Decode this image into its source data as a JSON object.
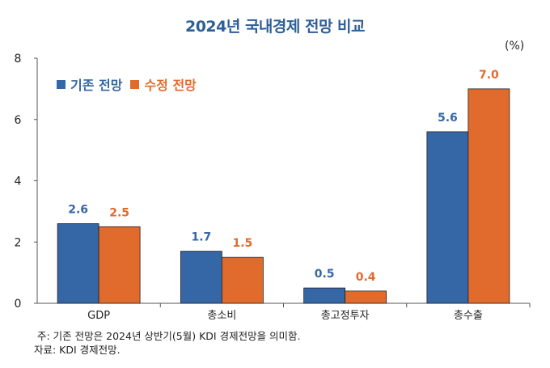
{
  "chart_data": {
    "type": "bar",
    "title": "2024년 국내경제 전망 비교",
    "unit": "(%)",
    "categories": [
      "GDP",
      "총소비",
      "총고정투자",
      "총수출"
    ],
    "series": [
      {
        "name": "기존 전망",
        "color": "#3566a6",
        "values": [
          2.6,
          1.7,
          0.5,
          5.6
        ],
        "labels": [
          "2.6",
          "1.7",
          "0.5",
          "5.6"
        ]
      },
      {
        "name": "수정 전망",
        "color": "#e06b2c",
        "values": [
          2.5,
          1.5,
          0.4,
          7.0
        ],
        "labels": [
          "2.5",
          "1.5",
          "0.4",
          "7.0"
        ]
      }
    ],
    "ylim": [
      0,
      8
    ],
    "yticks": [
      0,
      2,
      4,
      6,
      8
    ],
    "grid": false,
    "legend_position": "top-left"
  },
  "notes": {
    "note": "주: 기존 전망은 2024년 상반기(5월) KDI 경제전망을 의미함.",
    "source": "자료: KDI 경제전망."
  }
}
